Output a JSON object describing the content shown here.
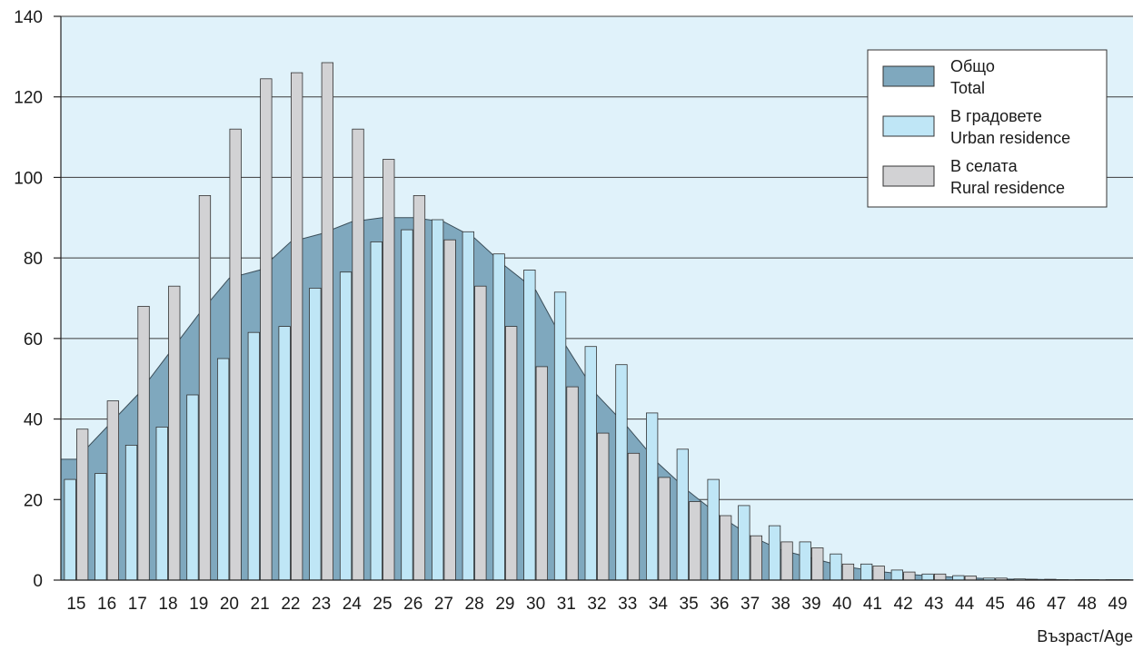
{
  "chart_data": {
    "type": "bar",
    "xlabel": "Възраст/Age",
    "ylim": [
      0,
      140
    ],
    "yticks": [
      0,
      20,
      40,
      60,
      80,
      100,
      120,
      140
    ],
    "grid": true,
    "legend_position": "top-right",
    "categories": [
      "15",
      "16",
      "17",
      "18",
      "19",
      "20",
      "21",
      "22",
      "23",
      "24",
      "25",
      "26",
      "27",
      "28",
      "29",
      "30",
      "31",
      "32",
      "33",
      "34",
      "35",
      "36",
      "37",
      "38",
      "39",
      "40",
      "41",
      "42",
      "43",
      "44",
      "45",
      "46",
      "47",
      "48",
      "49"
    ],
    "series": [
      {
        "name": "Общо",
        "name_en": "Total",
        "kind": "area",
        "color": "#7fa8be",
        "values": [
          30,
          38,
          46,
          56,
          66,
          75,
          77,
          84,
          86,
          89,
          90,
          90,
          89,
          85,
          78,
          72,
          58,
          46,
          38,
          29,
          22,
          16,
          11,
          7.5,
          5.5,
          3.5,
          2.3,
          1.5,
          1.0,
          0.6,
          0.3,
          0.2,
          0.1,
          0.05,
          0.05
        ]
      },
      {
        "name": "В градовете",
        "name_en": "Urban residence",
        "kind": "bar",
        "color": "#bfe6f6",
        "values": [
          25,
          26.5,
          33.5,
          38,
          46,
          55,
          61.5,
          63,
          72.5,
          76.5,
          84,
          87,
          89.5,
          86.5,
          81,
          77,
          71.5,
          58,
          53.5,
          41.5,
          32.5,
          25,
          18.5,
          13.5,
          9.5,
          6.5,
          4,
          2.5,
          1.5,
          1.1,
          0.5,
          0.3,
          0.2,
          0.1,
          0.1
        ]
      },
      {
        "name": "В селата",
        "name_en": "Rural residence",
        "kind": "bar",
        "color": "#d2d2d4",
        "values": [
          37.5,
          44.5,
          68,
          73,
          95.5,
          112,
          124.5,
          126,
          128.5,
          112,
          104.5,
          95.5,
          84.5,
          73,
          63,
          53,
          48,
          36.5,
          31.5,
          25.5,
          19.5,
          16,
          11,
          9.5,
          8,
          4,
          3.5,
          2,
          1.5,
          1,
          0.5,
          0.2,
          0.1,
          0.1,
          0.1
        ]
      }
    ]
  }
}
